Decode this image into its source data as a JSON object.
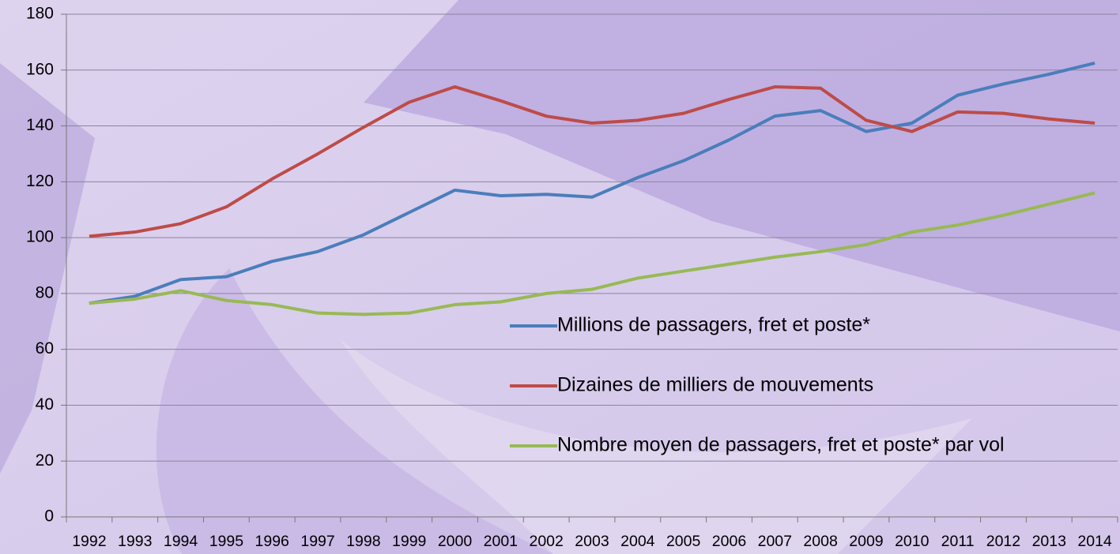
{
  "chart_data": {
    "type": "line",
    "categories": [
      "1992",
      "1993",
      "1994",
      "1995",
      "1996",
      "1997",
      "1998",
      "1999",
      "2000",
      "2001",
      "2002",
      "2003",
      "2004",
      "2005",
      "2006",
      "2007",
      "2008",
      "2009",
      "2010",
      "2011",
      "2012",
      "2013",
      "2014"
    ],
    "series": [
      {
        "name": "Millions de passagers, fret et poste*",
        "color": "#4a7ebb",
        "values": [
          76.5,
          79,
          85,
          86,
          91.5,
          95,
          101,
          109,
          117,
          115,
          115.5,
          114.5,
          121.5,
          127.5,
          135,
          143.5,
          145.5,
          138,
          141,
          151,
          155,
          158.5,
          162.5
        ]
      },
      {
        "name": "Dizaines de milliers de mouvements",
        "color": "#be4b48",
        "values": [
          100.5,
          102,
          105,
          111,
          121,
          130,
          139.5,
          148.5,
          154,
          149,
          143.5,
          141,
          142,
          144.5,
          149.5,
          154,
          153.5,
          142,
          138,
          145,
          144.5,
          142.5,
          141
        ]
      },
      {
        "name": "Nombre moyen de passagers, fret et poste* par vol",
        "color": "#98b954",
        "values": [
          76.5,
          78,
          81,
          77.5,
          76,
          73,
          72.5,
          73,
          76,
          77,
          80,
          81.5,
          85.5,
          88,
          90.5,
          93,
          95,
          97.5,
          102,
          104.5,
          108,
          112,
          116
        ]
      }
    ],
    "ylim": [
      0,
      180
    ],
    "yticks": [
      0,
      20,
      40,
      60,
      80,
      100,
      120,
      140,
      160,
      180
    ],
    "grid": true
  }
}
